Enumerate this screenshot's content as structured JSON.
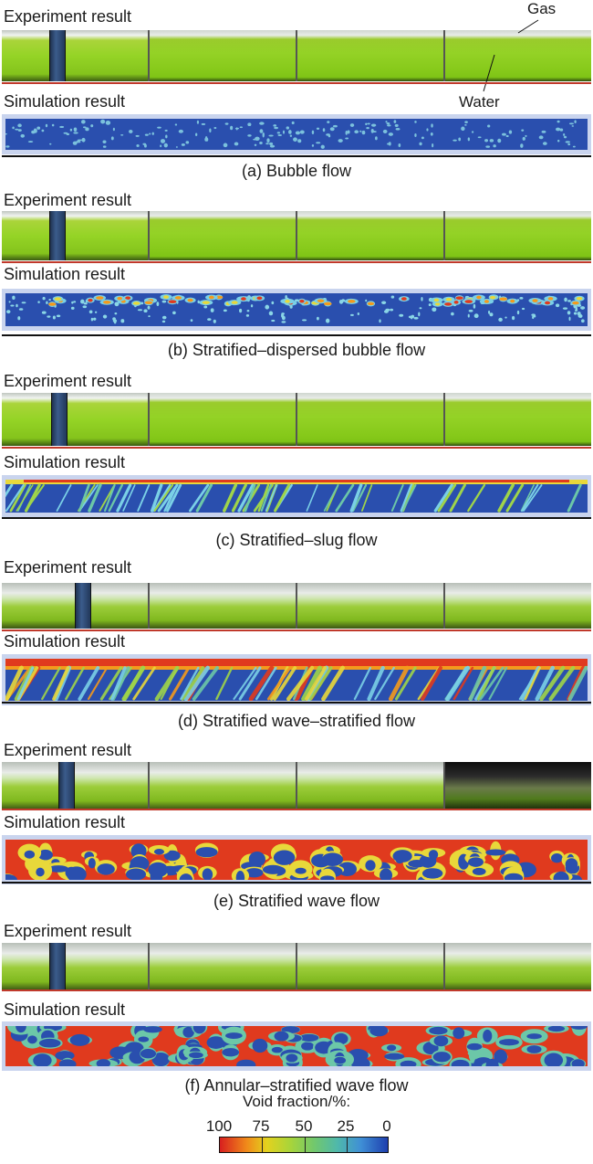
{
  "labels": {
    "experiment": "Experiment result",
    "simulation": "Simulation result"
  },
  "annotations": {
    "gas": "Gas",
    "water": "Water"
  },
  "panels": [
    {
      "caption": "(a) Bubble flow"
    },
    {
      "caption": "(b) Stratified–dispersed bubble flow"
    },
    {
      "caption": "(c) Stratified–slug flow"
    },
    {
      "caption": "(d) Stratified wave–stratified flow"
    },
    {
      "caption": "(e) Stratified wave flow"
    },
    {
      "caption": "(f) Annular–stratified wave flow"
    }
  ],
  "legend": {
    "title": "Void fraction/%:",
    "ticks": [
      "100",
      "75",
      "50",
      "25",
      "0"
    ],
    "colors": [
      "#d81f1f",
      "#f08a1a",
      "#e3d21e",
      "#a8d43a",
      "#72c86c",
      "#4fb8ab",
      "#3f8fd6",
      "#1e3fae"
    ]
  }
}
